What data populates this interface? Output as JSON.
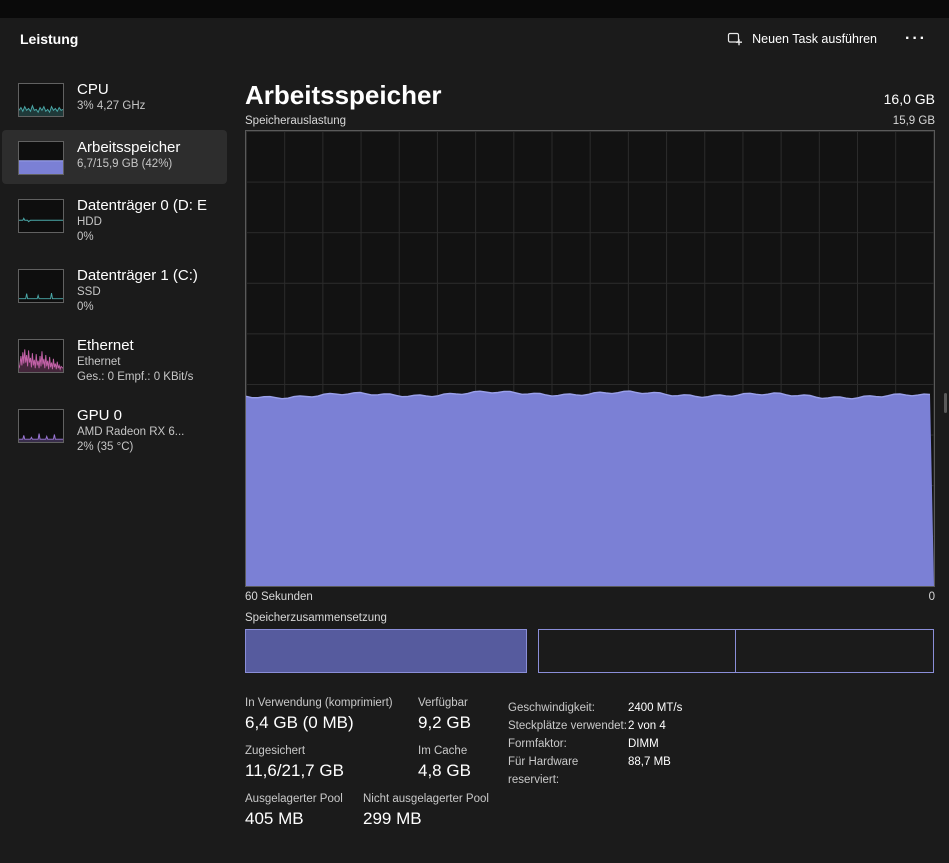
{
  "header": {
    "title": "Leistung",
    "run_task_label": "Neuen Task ausführen",
    "more_glyph": "···"
  },
  "sidebar": {
    "items": [
      {
        "title": "CPU",
        "line1": "3% 4,27 GHz",
        "line2": ""
      },
      {
        "title": "Arbeitsspeicher",
        "line1": "6,7/15,9 GB (42%)",
        "line2": ""
      },
      {
        "title": "Datenträger 0 (D: E",
        "line1": "HDD",
        "line2": "0%"
      },
      {
        "title": "Datenträger 1 (C:)",
        "line1": "SSD",
        "line2": "0%"
      },
      {
        "title": "Ethernet",
        "line1": "Ethernet",
        "line2": "Ges.: 0 Empf.: 0 KBit/s"
      },
      {
        "title": "GPU 0",
        "line1": "AMD Radeon RX 6...",
        "line2": "2% (35 °C)"
      }
    ]
  },
  "main": {
    "title": "Arbeitsspeicher",
    "total_memory": "16,0 GB",
    "graph_label": "Speicherauslastung",
    "graph_max": "15,9 GB",
    "x_axis_left": "60 Sekunden",
    "x_axis_right": "0",
    "usage_percent": 42,
    "composition": {
      "label": "Speicherzusammensetzung",
      "segments": [
        {
          "name": "in-use",
          "width_pct": 40.9,
          "style": "filled"
        },
        {
          "name": "modified",
          "width_pct": 1.6,
          "style": "gap"
        },
        {
          "name": "standby",
          "width_pct": 28.6,
          "style": "outline"
        },
        {
          "name": "free",
          "width_pct": 28.9,
          "style": "outline"
        }
      ]
    },
    "details_grid": [
      [
        {
          "label": "In Verwendung (komprimiert)",
          "value": "6,4 GB (0 MB)"
        },
        {
          "label": "Verfügbar",
          "value": "9,2 GB"
        }
      ],
      [
        {
          "label": "Zugesichert",
          "value": "11,6/21,7 GB"
        },
        {
          "label": "Im Cache",
          "value": "4,8 GB"
        }
      ],
      [
        {
          "label": "Ausgelagerter Pool",
          "value": "405 MB"
        },
        {
          "label": "Nicht ausgelagerter Pool",
          "value": "299 MB"
        }
      ]
    ],
    "details_right": [
      {
        "label": "Geschwindigkeit:",
        "value": "2400 MT/s"
      },
      {
        "label": "Steckplätze verwendet:",
        "value": "2 von 4"
      },
      {
        "label": "Formfaktor:",
        "value": "DIMM"
      },
      {
        "label": "Für Hardware reserviert:",
        "value": "88,7 MB"
      }
    ]
  },
  "colors": {
    "mem-fill": "#7b80d5",
    "mem-line": "#9aa0ea",
    "comp-fill": "#565b9e",
    "comp-border": "#8a8ed8",
    "cpu-accent": "#4aa8a8",
    "disk-accent": "#4aa8a8",
    "eth-accent": "#c261a7",
    "gpu-accent": "#9a76d6"
  }
}
